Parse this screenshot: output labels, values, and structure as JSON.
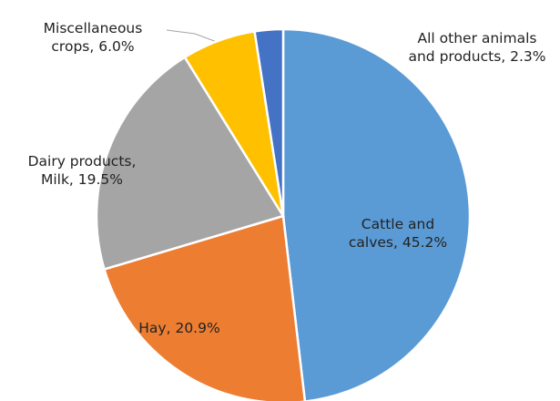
{
  "chart_data": {
    "type": "pie",
    "labels": [
      "Cattle and calves, 45.2%",
      "Hay, 20.9%",
      "Dairy products, Milk, 19.5%",
      "Miscellaneous crops, 6.0%",
      "All other animals and products, 2.3%"
    ],
    "values": [
      45.2,
      20.9,
      19.5,
      6.0,
      2.3
    ],
    "colors": [
      "#5b9bd5",
      "#ed7d31",
      "#a5a5a5",
      "#ffc000",
      "#4472c4"
    ]
  }
}
